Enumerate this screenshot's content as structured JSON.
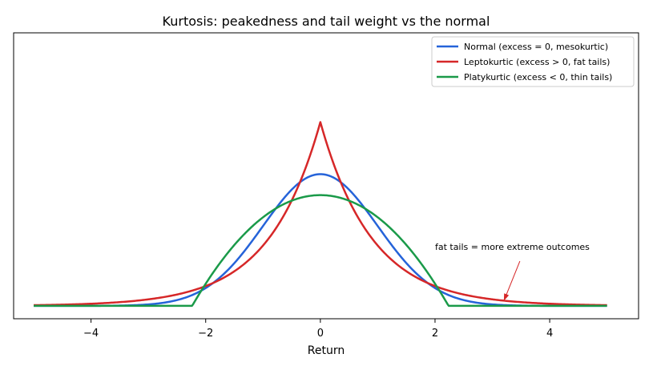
{
  "chart_data": {
    "type": "line",
    "title": "Kurtosis: peakedness and tail weight vs the normal",
    "xlabel": "Return",
    "ylabel": "",
    "xlim": [
      -5.35,
      5.55
    ],
    "ylim": [
      -0.039,
      0.827
    ],
    "x_ticks": [
      -4,
      -2,
      0,
      2,
      4
    ],
    "x_tick_labels": [
      "−4",
      "−2",
      "0",
      "2",
      "4"
    ],
    "y_ticks_shown": false,
    "grid": false,
    "legend_position": "top-right",
    "series": [
      {
        "name": "Normal (excess = 0, mesokurtic)",
        "color": "#2563d9",
        "x": [
          -5.0,
          -4.5,
          -4.0,
          -3.5,
          -3.0,
          -2.75,
          -2.5,
          -2.25,
          -2.0,
          -1.75,
          -1.5,
          -1.25,
          -1.0,
          -0.75,
          -0.5,
          -0.25,
          0.0,
          0.25,
          0.5,
          0.75,
          1.0,
          1.25,
          1.5,
          1.75,
          2.0,
          2.25,
          2.5,
          2.75,
          3.0,
          3.5,
          4.0,
          4.5,
          5.0
        ],
        "y": [
          0.0,
          0.0,
          0.0001,
          0.0009,
          0.0044,
          0.0091,
          0.0175,
          0.0317,
          0.054,
          0.0863,
          0.1295,
          0.1826,
          0.242,
          0.3011,
          0.3521,
          0.3867,
          0.3989,
          0.3867,
          0.3521,
          0.3011,
          0.242,
          0.1826,
          0.1295,
          0.0863,
          0.054,
          0.0317,
          0.0175,
          0.0091,
          0.0044,
          0.0009,
          0.0001,
          0.0,
          0.0
        ]
      },
      {
        "name": "Leptokurtic (excess > 0, fat tails)",
        "color": "#d62728",
        "x": [
          -5.0,
          -4.5,
          -4.0,
          -3.5,
          -3.0,
          -2.5,
          -2.0,
          -1.75,
          -1.5,
          -1.25,
          -1.0,
          -0.75,
          -0.5,
          -0.25,
          0.0,
          0.25,
          0.5,
          0.75,
          1.0,
          1.25,
          1.5,
          1.75,
          2.0,
          2.5,
          3.0,
          3.5,
          4.0,
          4.5,
          5.0
        ],
        "y": [
          0.0012,
          0.0023,
          0.0042,
          0.0078,
          0.0143,
          0.0264,
          0.0485,
          0.0658,
          0.0893,
          0.1211,
          0.1643,
          0.2229,
          0.3024,
          0.4103,
          0.5566,
          0.4103,
          0.3024,
          0.2229,
          0.1643,
          0.1211,
          0.0893,
          0.0658,
          0.0485,
          0.0264,
          0.0143,
          0.0078,
          0.0042,
          0.0023,
          0.0012
        ]
      },
      {
        "name": "Platykurtic (excess < 0, thin tails)",
        "color": "#1a9a49",
        "x": [
          -5.0,
          -3.0,
          -2.2,
          -2.1,
          -2.0,
          -1.75,
          -1.5,
          -1.25,
          -1.0,
          -0.75,
          -0.5,
          -0.25,
          0.0,
          0.25,
          0.5,
          0.75,
          1.0,
          1.25,
          1.5,
          1.75,
          2.0,
          2.1,
          2.2,
          3.0,
          5.0
        ],
        "y": [
          0.0,
          0.0,
          0.0,
          0.0018,
          0.0074,
          0.0411,
          0.0963,
          0.1638,
          0.2336,
          0.2963,
          0.3432,
          0.372,
          0.3585,
          0.372,
          0.3432,
          0.2963,
          0.2336,
          0.1638,
          0.0963,
          0.0411,
          0.0074,
          0.0018,
          0.0,
          0.0,
          0.0
        ]
      }
    ],
    "annotations": [
      {
        "text": "fat tails = more extreme outcomes",
        "text_xy": [
          2.0,
          0.15
        ],
        "arrow_to": [
          3.2,
          0.01
        ],
        "color": "#d62728"
      }
    ]
  }
}
